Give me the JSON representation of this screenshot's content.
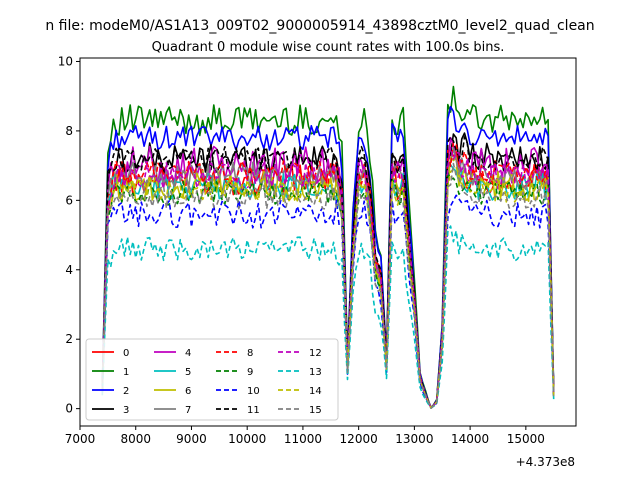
{
  "figure": {
    "suptitle": "n file: modeM0/AS1A13_009T02_9000005914_43898cztM0_level2_quad_clean",
    "offset_label": "+4.373e8"
  },
  "chart_data": {
    "type": "line",
    "title": "Quadrant 0 module wise count rates with 100.0s bins.",
    "xlabel": "",
    "ylabel": "",
    "x_offset": 437300000,
    "xlim": [
      7000,
      15900
    ],
    "ylim": [
      -0.5,
      10.1
    ],
    "xticks": [
      7000,
      8000,
      9000,
      10000,
      11000,
      12000,
      13000,
      14000,
      15000
    ],
    "yticks": [
      0,
      2,
      4,
      6,
      8,
      10
    ],
    "grid": false,
    "legend_position": "lower-left",
    "legend_columns": 4,
    "series": [
      {
        "name": "0",
        "color": "#ff0000",
        "dash": "solid",
        "base": 6.6,
        "amp": 0.45
      },
      {
        "name": "1",
        "color": "#008000",
        "dash": "solid",
        "base": 8.3,
        "amp": 0.45
      },
      {
        "name": "2",
        "color": "#0000ff",
        "dash": "solid",
        "base": 7.8,
        "amp": 0.35
      },
      {
        "name": "3",
        "color": "#000000",
        "dash": "solid",
        "base": 7.2,
        "amp": 0.45
      },
      {
        "name": "4",
        "color": "#bf00bf",
        "dash": "solid",
        "base": 7.0,
        "amp": 0.55
      },
      {
        "name": "5",
        "color": "#00bfbf",
        "dash": "solid",
        "base": 6.4,
        "amp": 0.4
      },
      {
        "name": "6",
        "color": "#bfbf00",
        "dash": "solid",
        "base": 6.4,
        "amp": 0.45
      },
      {
        "name": "7",
        "color": "#808080",
        "dash": "solid",
        "base": 6.7,
        "amp": 0.4
      },
      {
        "name": "8",
        "color": "#ff0000",
        "dash": "dashed",
        "base": 6.8,
        "amp": 0.35
      },
      {
        "name": "9",
        "color": "#008000",
        "dash": "dashed",
        "base": 6.2,
        "amp": 0.35
      },
      {
        "name": "10",
        "color": "#0000ff",
        "dash": "dashed",
        "base": 5.6,
        "amp": 0.4
      },
      {
        "name": "11",
        "color": "#000000",
        "dash": "dashed",
        "base": 7.2,
        "amp": 0.35
      },
      {
        "name": "12",
        "color": "#bf00bf",
        "dash": "dashed",
        "base": 6.7,
        "amp": 0.4
      },
      {
        "name": "13",
        "color": "#00bfbf",
        "dash": "dashed",
        "base": 4.6,
        "amp": 0.35
      },
      {
        "name": "14",
        "color": "#bfbf00",
        "dash": "dashed",
        "base": 6.3,
        "amp": 0.35
      },
      {
        "name": "15",
        "color": "#808080",
        "dash": "dashed",
        "base": 6.1,
        "amp": 0.35
      }
    ],
    "envelope": [
      {
        "x": 7400,
        "f": 0.08
      },
      {
        "x": 7500,
        "f": 0.9
      },
      {
        "x": 7600,
        "f": 1.0
      },
      {
        "x": 11600,
        "f": 1.0
      },
      {
        "x": 11700,
        "f": 0.9
      },
      {
        "x": 11800,
        "f": 0.18
      },
      {
        "x": 11900,
        "f": 0.7
      },
      {
        "x": 12000,
        "f": 1.0
      },
      {
        "x": 12100,
        "f": 1.0
      },
      {
        "x": 12200,
        "f": 0.9
      },
      {
        "x": 12300,
        "f": 0.62
      },
      {
        "x": 12400,
        "f": 0.55
      },
      {
        "x": 12500,
        "f": 0.18
      },
      {
        "x": 12600,
        "f": 1.02
      },
      {
        "x": 12700,
        "f": 0.98
      },
      {
        "x": 12800,
        "f": 1.0
      },
      {
        "x": 12900,
        "f": 0.7
      },
      {
        "x": 13000,
        "f": 0.45
      },
      {
        "x": 13100,
        "f": 0.13
      },
      {
        "x": 13200,
        "f": 0.06
      },
      {
        "x": 13300,
        "f": 0.0
      },
      {
        "x": 13400,
        "f": 0.03
      },
      {
        "x": 13500,
        "f": 0.3
      },
      {
        "x": 13600,
        "f": 1.05
      },
      {
        "x": 13700,
        "f": 1.1
      },
      {
        "x": 13800,
        "f": 1.04
      },
      {
        "x": 13900,
        "f": 1.04
      },
      {
        "x": 14000,
        "f": 1.0
      },
      {
        "x": 15400,
        "f": 1.0
      },
      {
        "x": 15500,
        "f": 0.06
      }
    ]
  }
}
